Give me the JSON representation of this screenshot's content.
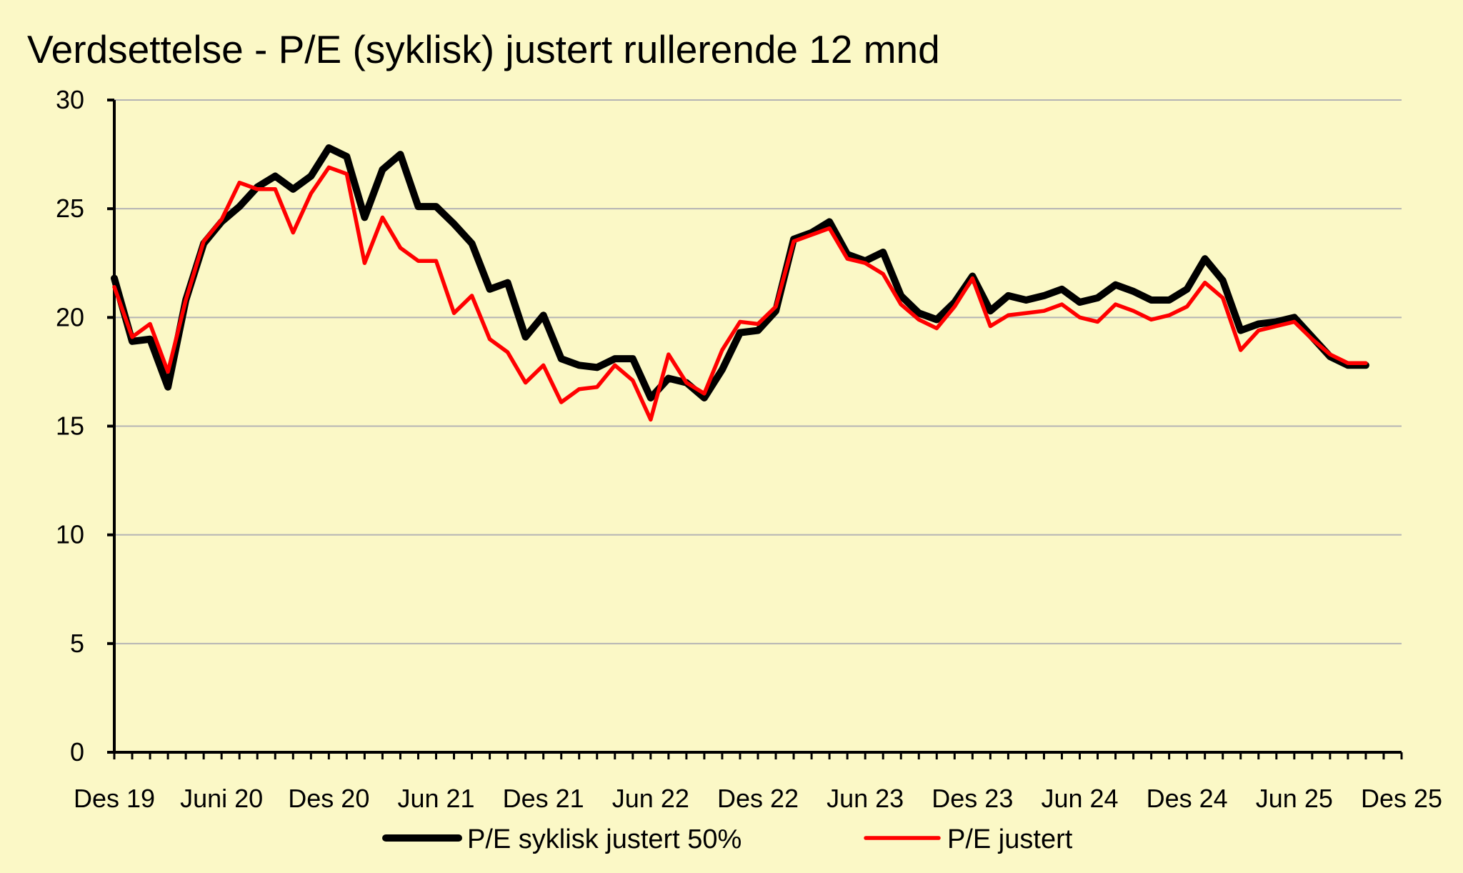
{
  "chart_data": {
    "type": "line",
    "title": "Verdsettelse - P/E (syklisk) justert rullerende 12 mnd",
    "xlabel": "",
    "ylabel": "",
    "ylim": [
      0,
      30
    ],
    "yticks": [
      0,
      5,
      10,
      15,
      20,
      25,
      30
    ],
    "x_tick_labels": [
      "Des 19",
      "Juni 20",
      "Des 20",
      "Jun 21",
      "Des 21",
      "Jun 22",
      "Des 22",
      "Jun 23",
      "Des 23",
      "Jun 24",
      "Des 24",
      "Jun 25",
      "Des 25"
    ],
    "months_per_tick": 6,
    "total_months": 72,
    "grid": true,
    "legend_position": "bottom",
    "series": [
      {
        "name": "P/E syklisk justert 50%",
        "color": "#000000",
        "values": [
          21.8,
          18.9,
          19.0,
          16.8,
          20.8,
          23.4,
          24.4,
          25.1,
          26.0,
          26.5,
          25.9,
          26.5,
          27.8,
          27.4,
          24.6,
          26.8,
          27.5,
          25.1,
          25.1,
          24.3,
          23.4,
          21.3,
          21.6,
          19.1,
          20.1,
          18.1,
          17.8,
          17.7,
          18.1,
          18.1,
          16.3,
          17.2,
          17.0,
          16.3,
          17.6,
          19.3,
          19.4,
          20.3,
          23.6,
          23.9,
          24.4,
          22.9,
          22.6,
          23.0,
          21.0,
          20.2,
          19.9,
          20.7,
          21.9,
          20.3,
          21.0,
          20.8,
          21.0,
          21.3,
          20.7,
          20.9,
          21.5,
          21.2,
          20.8,
          20.8,
          21.3,
          22.7,
          21.7,
          19.4,
          19.7,
          19.8,
          20.0,
          19.1,
          18.2,
          17.8,
          17.8
        ]
      },
      {
        "name": "P/E justert",
        "color": "#FF0000",
        "values": [
          21.4,
          19.1,
          19.7,
          17.5,
          20.8,
          23.5,
          24.5,
          26.2,
          25.9,
          25.9,
          23.9,
          25.7,
          26.9,
          26.6,
          22.5,
          24.6,
          23.2,
          22.6,
          22.6,
          20.2,
          21.0,
          19.0,
          18.4,
          17.0,
          17.8,
          16.1,
          16.7,
          16.8,
          17.8,
          17.1,
          15.3,
          18.3,
          17.0,
          16.5,
          18.5,
          19.8,
          19.7,
          20.5,
          23.5,
          23.8,
          24.1,
          22.7,
          22.5,
          22.0,
          20.6,
          19.9,
          19.5,
          20.5,
          21.8,
          19.6,
          20.1,
          20.2,
          20.3,
          20.6,
          20.0,
          19.8,
          20.6,
          20.3,
          19.9,
          20.1,
          20.5,
          21.6,
          20.9,
          18.5,
          19.4,
          19.6,
          19.8,
          19.0,
          18.3,
          17.9,
          17.9
        ]
      }
    ]
  }
}
